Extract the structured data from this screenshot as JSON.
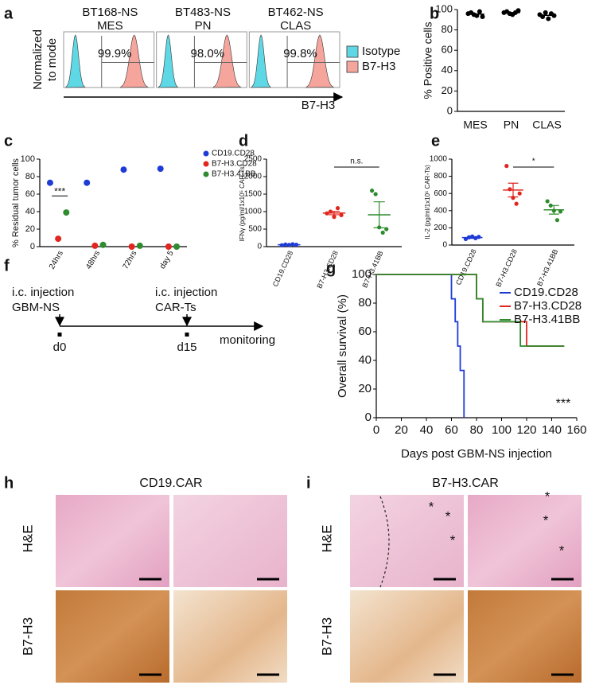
{
  "panel_labels": [
    "a",
    "b",
    "c",
    "d",
    "e",
    "f",
    "g",
    "h",
    "i"
  ],
  "chart_data": [
    {
      "type": "flow",
      "samples": [
        "BT168-NS",
        "BT483-NS",
        "BT462-NS"
      ],
      "subtypes": [
        "MES",
        "PN",
        "CLAS"
      ],
      "values": [
        99.9,
        98.0,
        99.8
      ],
      "value_labels": [
        "99.9%",
        "98.0%",
        "99.8%"
      ],
      "ylabel_lines": [
        "Normalized",
        "to mode"
      ],
      "xlabel": "B7-H3",
      "series": [
        {
          "name": "Isotype",
          "color": "#5fd8e6"
        },
        {
          "name": "B7-H3",
          "color": "#f6a59c"
        }
      ]
    },
    {
      "type": "dot",
      "categories": [
        "MES",
        "PN",
        "CLAS"
      ],
      "color": "#000000",
      "points": [
        [
          96,
          97,
          95,
          94,
          98,
          93
        ],
        [
          97,
          98,
          96,
          95,
          97,
          99
        ],
        [
          95,
          93,
          97,
          91,
          96,
          94
        ]
      ],
      "means": [
        95.5,
        97,
        94.3
      ],
      "ylim": [
        0,
        100
      ],
      "yticks": [
        0,
        20,
        40,
        60,
        80,
        100
      ],
      "ylabel": "% Positive cells"
    },
    {
      "type": "strip",
      "categories": [
        "24hrs",
        "48hrs",
        "72hrs",
        "day 5"
      ],
      "ylim": [
        0,
        100
      ],
      "yticks": [
        0,
        20,
        40,
        60,
        80,
        100
      ],
      "ylabel": "% Residual tumor cells",
      "annotation": "***",
      "series": [
        {
          "name": "CD19.CD28",
          "color": "#1f3bd6",
          "values": [
            73,
            73,
            88,
            89
          ]
        },
        {
          "name": "B7-H3.CD28",
          "color": "#e0261f",
          "values": [
            9,
            1,
            0,
            0
          ]
        },
        {
          "name": "B7-H3.41BB",
          "color": "#2e8b2e",
          "values": [
            39,
            2,
            1,
            0
          ]
        }
      ]
    },
    {
      "type": "dot",
      "categories": [
        "CD19.CD28",
        "B7-H3.CD28",
        "B7-H3.41BB"
      ],
      "colors": [
        "#1f3bd6",
        "#e0261f",
        "#2e8b2e"
      ],
      "points": [
        [
          40,
          60,
          50,
          70,
          55
        ],
        [
          950,
          1000,
          850,
          1100,
          900
        ],
        [
          1600,
          1500,
          550,
          400,
          500
        ]
      ],
      "means": [
        55,
        960,
        910
      ],
      "errors": [
        10,
        50,
        370
      ],
      "ylim": [
        0,
        2500
      ],
      "yticks": [
        0,
        500,
        1000,
        1500,
        2000,
        2500
      ],
      "ylabel": "IFNγ (pg/ml/1x10⁵ CAR-Ts)",
      "annotation": "n.s."
    },
    {
      "type": "dot",
      "categories": [
        "CD19.CD28",
        "B7-H3.CD28",
        "B7-H3.41BB"
      ],
      "colors": [
        "#1f3bd6",
        "#e0261f",
        "#2e8b2e"
      ],
      "points": [
        [
          70,
          90,
          100,
          80,
          95
        ],
        [
          920,
          650,
          550,
          480,
          600
        ],
        [
          510,
          460,
          400,
          290,
          390
        ]
      ],
      "means": [
        87,
        640,
        410
      ],
      "errors": [
        10,
        80,
        50
      ],
      "ylim": [
        0,
        1000
      ],
      "yticks": [
        0,
        200,
        400,
        600,
        800,
        1000
      ],
      "ylabel": "IL-2 (pg/ml/1x10⁵ CAR-Ts)",
      "annotation": "*"
    },
    {
      "type": "survival",
      "xlim": [
        0,
        160
      ],
      "xticks": [
        0,
        20,
        40,
        60,
        80,
        100,
        120,
        140,
        160
      ],
      "ylim": [
        0,
        100
      ],
      "yticks": [
        0,
        20,
        40,
        60,
        80,
        100
      ],
      "xlabel": "Days post GBM-NS injection",
      "ylabel": "Overall survival (%)",
      "annotation": "***",
      "series": [
        {
          "name": "CD19.CD28",
          "color": "#1f3bd6",
          "x": [
            0,
            60,
            63,
            65,
            67,
            70
          ],
          "values": [
            100,
            83,
            67,
            50,
            33,
            0
          ]
        },
        {
          "name": "B7-H3.CD28",
          "color": "#e0261f",
          "x": [
            0,
            80,
            85,
            120,
            150
          ],
          "values": [
            100,
            83,
            67,
            50,
            50
          ]
        },
        {
          "name": "B7-H3.41BB",
          "color": "#2e8b2e",
          "x": [
            0,
            80,
            85,
            115,
            150
          ],
          "values": [
            100,
            83,
            67,
            50,
            50
          ]
        }
      ]
    }
  ],
  "timeline": {
    "events": [
      {
        "line1": "i.c. injection",
        "line2": "GBM-NS",
        "day": "d0"
      },
      {
        "line1": "i.c. injection",
        "line2": "CAR-Ts",
        "day": "d15"
      }
    ],
    "end": "monitoring"
  },
  "histology": {
    "titles": [
      "CD19.CAR",
      "B7-H3.CAR"
    ],
    "rows": [
      "H&E",
      "B7-H3"
    ],
    "marks": [
      "*",
      "*",
      "*",
      "*",
      "*",
      "*"
    ]
  }
}
